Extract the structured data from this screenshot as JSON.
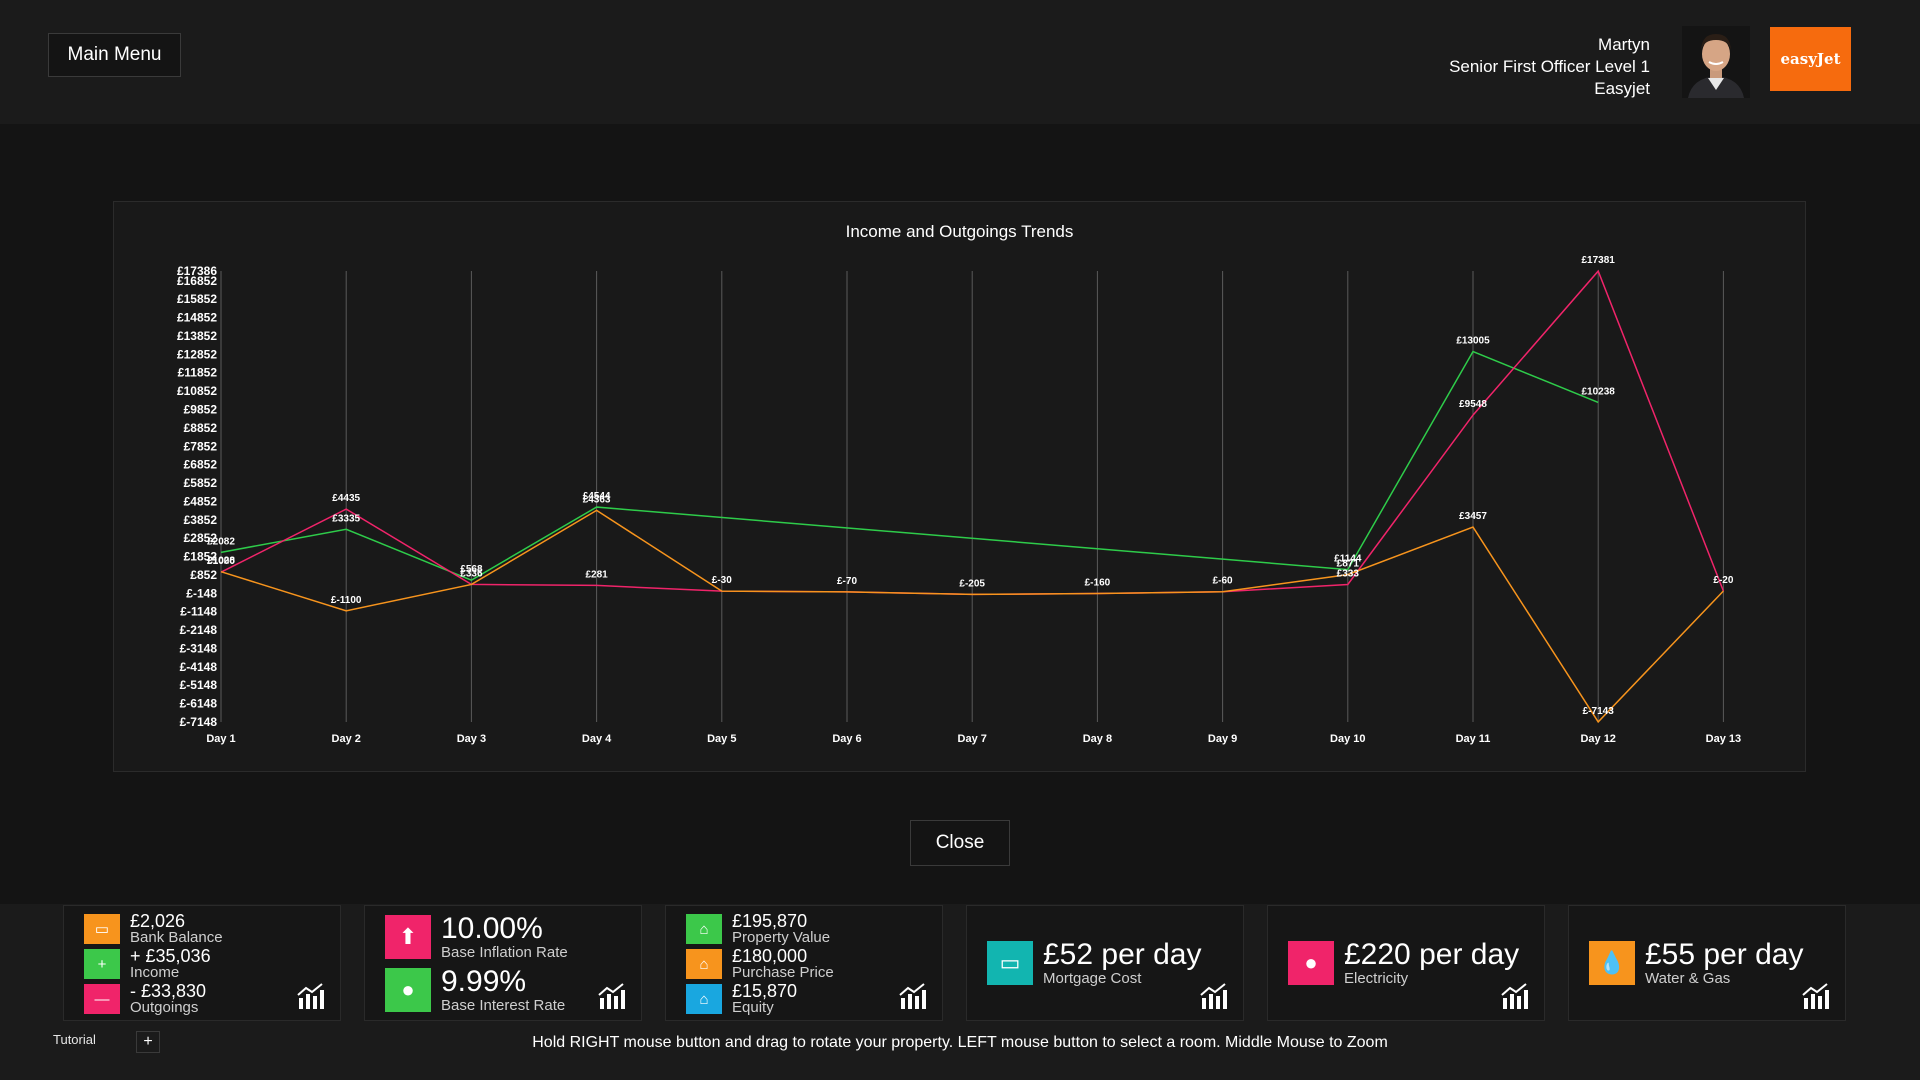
{
  "header": {
    "main_menu_label": "Main Menu",
    "user_name": "Martyn",
    "user_rank": "Senior First Officer Level 1",
    "user_airline": "Easyjet",
    "logo_text": "easyJet"
  },
  "chart_data": {
    "type": "line",
    "title": "Income and Outgoings Trends",
    "categories": [
      "Day 1",
      "Day 2",
      "Day 3",
      "Day 4",
      "Day 5",
      "Day 6",
      "Day 7",
      "Day 8",
      "Day 9",
      "Day 10",
      "Day 11",
      "Day 12",
      "Day 13"
    ],
    "y_tick_labels": [
      "£17386",
      "£16852",
      "£15852",
      "£14852",
      "£13852",
      "£12852",
      "£11852",
      "£10852",
      "£9852",
      "£8852",
      "£7852",
      "£6852",
      "£5852",
      "£4852",
      "£3852",
      "£2852",
      "£1852",
      "£852",
      "£-148",
      "£-1148",
      "£-2148",
      "£-3148",
      "£-4148",
      "£-5148",
      "£-6148",
      "£-7148"
    ],
    "y_tick_values": [
      17386,
      16852,
      15852,
      14852,
      13852,
      12852,
      11852,
      10852,
      9852,
      8852,
      7852,
      6852,
      5852,
      4852,
      3852,
      2852,
      1852,
      852,
      -148,
      -1148,
      -2148,
      -3148,
      -4148,
      -5148,
      -6148,
      -7148
    ],
    "ylim": [
      -7148,
      17386
    ],
    "grid": "vertical",
    "series": [
      {
        "color": "#2ecc4a",
        "values": [
          2082,
          3335,
          568,
          4544,
          null,
          null,
          null,
          null,
          null,
          1144,
          13005,
          10238,
          null
        ]
      },
      {
        "color": "#f0246a",
        "values": [
          1000,
          4435,
          336,
          281,
          -30,
          -70,
          -205,
          -160,
          -60,
          333,
          9548,
          17381,
          -20
        ]
      },
      {
        "color": "#f7941d",
        "values": [
          1028,
          -1100,
          336,
          4363,
          -30,
          -70,
          -205,
          -160,
          -60,
          871,
          3457,
          -7143,
          -20
        ]
      }
    ],
    "data_labels": [
      {
        "x": 0,
        "y": 2082,
        "text": "£2082"
      },
      {
        "x": 0,
        "y": 1028,
        "text": "£1028"
      },
      {
        "x": 0,
        "y": 1000,
        "text": "£1000"
      },
      {
        "x": 1,
        "y": 4435,
        "text": "£4435"
      },
      {
        "x": 1,
        "y": 3335,
        "text": "£3335"
      },
      {
        "x": 1,
        "y": -1100,
        "text": "£-1100"
      },
      {
        "x": 2,
        "y": 568,
        "text": "£568"
      },
      {
        "x": 2,
        "y": 336,
        "text": "£336"
      },
      {
        "x": 3,
        "y": 4544,
        "text": "£4544"
      },
      {
        "x": 3,
        "y": 4363,
        "text": "£4363"
      },
      {
        "x": 3,
        "y": 281,
        "text": "£281"
      },
      {
        "x": 4,
        "y": -30,
        "text": "£-30"
      },
      {
        "x": 5,
        "y": -70,
        "text": "£-70"
      },
      {
        "x": 6,
        "y": -205,
        "text": "£-205"
      },
      {
        "x": 7,
        "y": -160,
        "text": "£-160"
      },
      {
        "x": 8,
        "y": -60,
        "text": "£-60"
      },
      {
        "x": 9,
        "y": 1144,
        "text": "£1144"
      },
      {
        "x": 9,
        "y": 871,
        "text": "£871"
      },
      {
        "x": 9,
        "y": 333,
        "text": "£333"
      },
      {
        "x": 10,
        "y": 13005,
        "text": "£13005"
      },
      {
        "x": 10,
        "y": 9548,
        "text": "£9548"
      },
      {
        "x": 10,
        "y": 3457,
        "text": "£3457"
      },
      {
        "x": 11,
        "y": 17381,
        "text": "£17381"
      },
      {
        "x": 11,
        "y": 10238,
        "text": "£10238"
      },
      {
        "x": 11,
        "y": -7143,
        "text": "£-7143"
      },
      {
        "x": 12,
        "y": -20,
        "text": "£-20"
      }
    ]
  },
  "close_label": "Close",
  "cards": {
    "finance": {
      "balance_value": "£2,026",
      "balance_label": "Bank Balance",
      "income_value": "+ £35,036",
      "income_label": "Income",
      "outgoings_value": "- £33,830",
      "outgoings_label": "Outgoings"
    },
    "rates": {
      "inflation_value": "10.00%",
      "inflation_label": "Base Inflation Rate",
      "interest_value": "9.99%",
      "interest_label": "Base Interest Rate"
    },
    "property": {
      "value_value": "£195,870",
      "value_label": "Property Value",
      "purchase_value": "£180,000",
      "purchase_label": "Purchase Price",
      "equity_value": "£15,870",
      "equity_label": "Equity"
    },
    "mortgage": {
      "value": "£52 per day",
      "label": "Mortgage Cost"
    },
    "electricity": {
      "value": "£220 per day",
      "label": "Electricity"
    },
    "water": {
      "value": "£55 per day",
      "label": "Water & Gas"
    }
  },
  "colors": {
    "orange": "#f7941d",
    "green": "#3cc84a",
    "pink": "#f0246a",
    "blue": "#19a7e0",
    "teal": "#12b5b0"
  },
  "footer": {
    "tutorial_label": "Tutorial",
    "plus_label": "+",
    "hint": "Hold RIGHT mouse button and drag to rotate your property. LEFT mouse button to select a room. Middle Mouse to Zoom"
  }
}
